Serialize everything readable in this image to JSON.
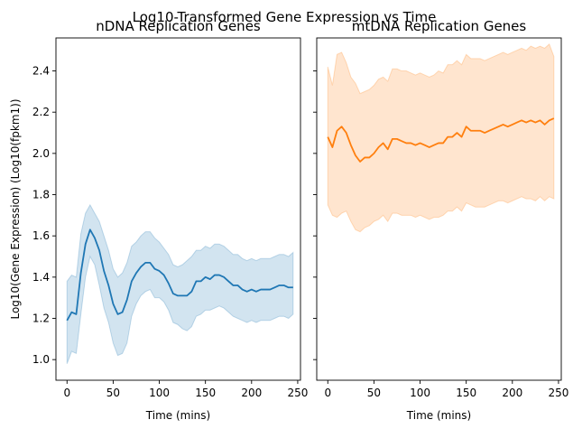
{
  "chart_data": [
    {
      "type": "line",
      "title": "nDNA Replication Genes",
      "xlabel": "Time (mins)",
      "ylabel": "Log10(Gene Expression) (Log10(fpkm1))",
      "xlim": [
        -12,
        253
      ],
      "ylim": [
        0.9,
        2.56
      ],
      "xticks": [
        0,
        50,
        100,
        150,
        200,
        250
      ],
      "yticks": [
        1.0,
        1.2,
        1.4,
        1.6,
        1.8,
        2.0,
        2.2,
        2.4
      ],
      "grid": false,
      "line_color": "#1f77b4",
      "band_color": "#1f77b4",
      "series": [
        {
          "x": [
            0,
            5,
            10,
            15,
            20,
            25,
            30,
            35,
            40,
            45,
            50,
            55,
            60,
            65,
            70,
            75,
            80,
            85,
            90,
            95,
            100,
            105,
            110,
            115,
            120,
            125,
            130,
            135,
            140,
            145,
            150,
            155,
            160,
            165,
            170,
            175,
            180,
            185,
            190,
            195,
            200,
            205,
            210,
            215,
            220,
            225,
            230,
            235,
            240,
            245
          ],
          "y": [
            1.19,
            1.23,
            1.22,
            1.42,
            1.56,
            1.63,
            1.59,
            1.53,
            1.43,
            1.36,
            1.27,
            1.22,
            1.23,
            1.29,
            1.38,
            1.42,
            1.45,
            1.47,
            1.47,
            1.44,
            1.43,
            1.41,
            1.37,
            1.32,
            1.31,
            1.31,
            1.31,
            1.33,
            1.38,
            1.38,
            1.4,
            1.39,
            1.41,
            1.41,
            1.4,
            1.38,
            1.36,
            1.36,
            1.34,
            1.33,
            1.34,
            1.33,
            1.34,
            1.34,
            1.34,
            1.35,
            1.36,
            1.36,
            1.35,
            1.35
          ],
          "lower": [
            0.98,
            1.04,
            1.03,
            1.22,
            1.4,
            1.5,
            1.46,
            1.36,
            1.25,
            1.18,
            1.08,
            1.02,
            1.03,
            1.08,
            1.21,
            1.27,
            1.31,
            1.33,
            1.34,
            1.3,
            1.3,
            1.28,
            1.24,
            1.18,
            1.17,
            1.15,
            1.14,
            1.16,
            1.21,
            1.22,
            1.24,
            1.24,
            1.25,
            1.26,
            1.25,
            1.23,
            1.21,
            1.2,
            1.19,
            1.18,
            1.19,
            1.18,
            1.19,
            1.19,
            1.19,
            1.2,
            1.21,
            1.21,
            1.2,
            1.22
          ],
          "upper": [
            1.38,
            1.41,
            1.4,
            1.61,
            1.71,
            1.75,
            1.71,
            1.67,
            1.6,
            1.53,
            1.44,
            1.4,
            1.42,
            1.47,
            1.55,
            1.57,
            1.6,
            1.62,
            1.62,
            1.59,
            1.57,
            1.54,
            1.51,
            1.46,
            1.45,
            1.46,
            1.48,
            1.5,
            1.53,
            1.53,
            1.55,
            1.54,
            1.56,
            1.56,
            1.55,
            1.53,
            1.51,
            1.51,
            1.49,
            1.48,
            1.49,
            1.48,
            1.49,
            1.49,
            1.49,
            1.5,
            1.51,
            1.51,
            1.5,
            1.52
          ]
        }
      ]
    },
    {
      "type": "line",
      "title": "mtDNA Replication Genes",
      "xlabel": "Time (mins)",
      "ylabel": "",
      "xlim": [
        -12,
        253
      ],
      "ylim": [
        0.9,
        2.56
      ],
      "xticks": [
        0,
        50,
        100,
        150,
        200,
        250
      ],
      "yticks": [
        1.0,
        1.2,
        1.4,
        1.6,
        1.8,
        2.0,
        2.2,
        2.4
      ],
      "ytick_labels_shown": false,
      "grid": false,
      "line_color": "#ff7f0e",
      "band_color": "#ff7f0e",
      "series": [
        {
          "x": [
            0,
            5,
            10,
            15,
            20,
            25,
            30,
            35,
            40,
            45,
            50,
            55,
            60,
            65,
            70,
            75,
            80,
            85,
            90,
            95,
            100,
            105,
            110,
            115,
            120,
            125,
            130,
            135,
            140,
            145,
            150,
            155,
            160,
            165,
            170,
            175,
            180,
            185,
            190,
            195,
            200,
            205,
            210,
            215,
            220,
            225,
            230,
            235,
            240,
            245
          ],
          "y": [
            2.08,
            2.03,
            2.11,
            2.13,
            2.1,
            2.04,
            1.99,
            1.96,
            1.98,
            1.98,
            2.0,
            2.03,
            2.05,
            2.02,
            2.07,
            2.07,
            2.06,
            2.05,
            2.05,
            2.04,
            2.05,
            2.04,
            2.03,
            2.04,
            2.05,
            2.05,
            2.08,
            2.08,
            2.1,
            2.08,
            2.13,
            2.11,
            2.11,
            2.11,
            2.1,
            2.11,
            2.12,
            2.13,
            2.14,
            2.13,
            2.14,
            2.15,
            2.16,
            2.15,
            2.16,
            2.15,
            2.16,
            2.14,
            2.16,
            2.17
          ],
          "lower": [
            1.75,
            1.7,
            1.69,
            1.71,
            1.72,
            1.67,
            1.63,
            1.62,
            1.64,
            1.65,
            1.67,
            1.68,
            1.7,
            1.67,
            1.71,
            1.71,
            1.7,
            1.7,
            1.7,
            1.69,
            1.7,
            1.69,
            1.68,
            1.69,
            1.69,
            1.7,
            1.72,
            1.72,
            1.74,
            1.72,
            1.76,
            1.75,
            1.74,
            1.74,
            1.74,
            1.75,
            1.76,
            1.77,
            1.77,
            1.76,
            1.77,
            1.78,
            1.79,
            1.78,
            1.78,
            1.77,
            1.79,
            1.77,
            1.79,
            1.78
          ],
          "upper": [
            2.42,
            2.33,
            2.48,
            2.49,
            2.44,
            2.37,
            2.34,
            2.29,
            2.3,
            2.31,
            2.33,
            2.36,
            2.37,
            2.35,
            2.41,
            2.41,
            2.4,
            2.4,
            2.39,
            2.38,
            2.39,
            2.38,
            2.37,
            2.38,
            2.4,
            2.39,
            2.43,
            2.43,
            2.45,
            2.43,
            2.48,
            2.46,
            2.46,
            2.46,
            2.45,
            2.46,
            2.47,
            2.48,
            2.49,
            2.48,
            2.49,
            2.5,
            2.51,
            2.5,
            2.52,
            2.51,
            2.52,
            2.51,
            2.53,
            2.47
          ]
        }
      ]
    }
  ],
  "suptitle": "Log10-Transformed Gene Expression vs Time"
}
